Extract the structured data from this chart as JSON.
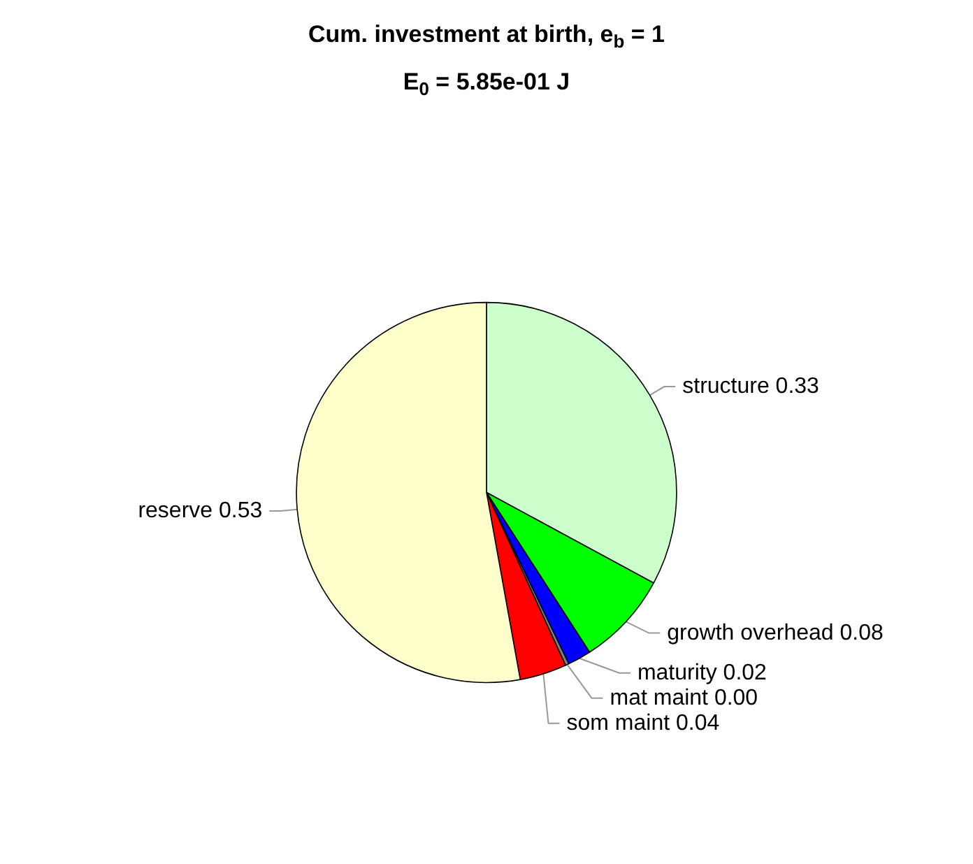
{
  "chart_data": {
    "type": "pie",
    "title": "Cum. investment at birth, e$_{b}$ = 1",
    "subtitle": "E$_{0}$ = 5.85e-01 J",
    "categories": [
      "structure",
      "growth overhead",
      "maturity",
      "mat maint",
      "som maint",
      "reserve"
    ],
    "values": [
      0.33,
      0.08,
      0.02,
      0.003,
      0.04,
      0.53
    ],
    "value_labels": [
      "0.33",
      "0.08",
      "0.02",
      "0.00",
      "0.04",
      "0.53"
    ],
    "colors": [
      "#ccffcc",
      "#00ff00",
      "#0000ff",
      "#808080",
      "#ff0000",
      "#ffffcc"
    ],
    "legend": false
  }
}
